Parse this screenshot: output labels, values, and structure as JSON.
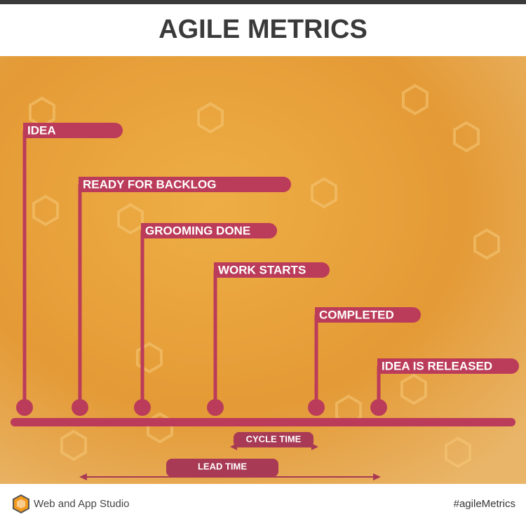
{
  "header": {
    "title": "AGILE METRICS"
  },
  "milestones": [
    {
      "label": "IDEA"
    },
    {
      "label": "READY FOR BACKLOG"
    },
    {
      "label": "GROOMING DONE"
    },
    {
      "label": "WORK STARTS"
    },
    {
      "label": "COMPLETED"
    },
    {
      "label": "IDEA IS RELEASED"
    }
  ],
  "spans": [
    {
      "label": "CYCLE TIME"
    },
    {
      "label": "LEAD TIME"
    }
  ],
  "footer": {
    "brand": "Web and App Studio",
    "hashtag": "#agileMetrics"
  }
}
